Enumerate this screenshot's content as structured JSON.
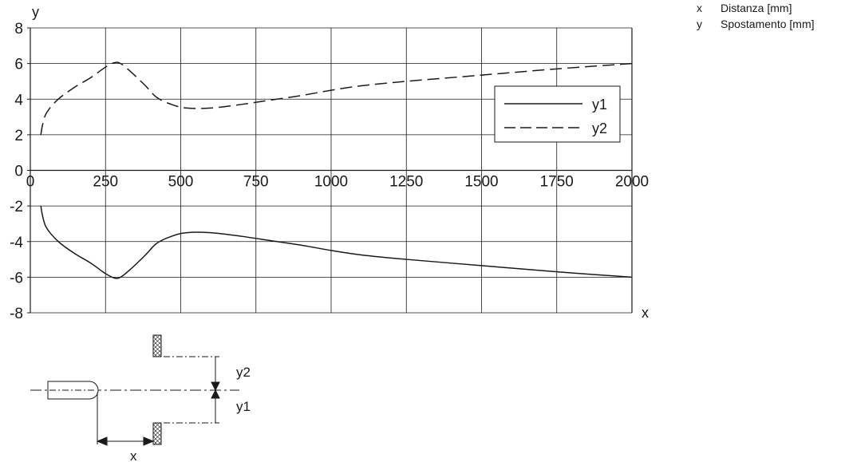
{
  "chart_data": {
    "type": "line",
    "x_axis_letter": "x",
    "y_axis_letter": "y",
    "xlim": [
      0,
      2000
    ],
    "ylim": [
      -8,
      8
    ],
    "x_ticks": [
      0,
      250,
      500,
      750,
      1000,
      1250,
      1500,
      1750,
      2000
    ],
    "y_ticks": [
      8,
      6,
      4,
      2,
      0,
      -2,
      -4,
      -6,
      -8
    ],
    "x_tick_labels": [
      "0",
      "250",
      "500",
      "750",
      "1000",
      "1250",
      "1500",
      "1750",
      "2000"
    ],
    "y_tick_labels": [
      "8",
      "6",
      "4",
      "2",
      "0",
      "-2",
      "-4",
      "-6",
      "-8"
    ],
    "grid": true,
    "legend_position": "right",
    "series": [
      {
        "name": "y1",
        "style": "solid",
        "points": [
          [
            35,
            -2
          ],
          [
            40,
            -2.5
          ],
          [
            50,
            -3.1
          ],
          [
            70,
            -3.6
          ],
          [
            100,
            -4.1
          ],
          [
            150,
            -4.7
          ],
          [
            200,
            -5.2
          ],
          [
            250,
            -5.8
          ],
          [
            280,
            -6.05
          ],
          [
            300,
            -6.0
          ],
          [
            330,
            -5.6
          ],
          [
            380,
            -4.8
          ],
          [
            420,
            -4.1
          ],
          [
            470,
            -3.7
          ],
          [
            520,
            -3.5
          ],
          [
            600,
            -3.5
          ],
          [
            700,
            -3.7
          ],
          [
            800,
            -3.95
          ],
          [
            900,
            -4.2
          ],
          [
            1000,
            -4.5
          ],
          [
            1100,
            -4.75
          ],
          [
            1250,
            -5.0
          ],
          [
            1500,
            -5.35
          ],
          [
            1750,
            -5.7
          ],
          [
            2000,
            -6.0
          ]
        ]
      },
      {
        "name": "y2",
        "style": "dashed",
        "points": [
          [
            35,
            2
          ],
          [
            40,
            2.5
          ],
          [
            50,
            3.1
          ],
          [
            70,
            3.6
          ],
          [
            100,
            4.1
          ],
          [
            150,
            4.7
          ],
          [
            200,
            5.2
          ],
          [
            250,
            5.8
          ],
          [
            280,
            6.05
          ],
          [
            300,
            6.0
          ],
          [
            330,
            5.6
          ],
          [
            380,
            4.8
          ],
          [
            420,
            4.1
          ],
          [
            470,
            3.7
          ],
          [
            520,
            3.5
          ],
          [
            600,
            3.5
          ],
          [
            700,
            3.7
          ],
          [
            800,
            3.95
          ],
          [
            900,
            4.2
          ],
          [
            1000,
            4.5
          ],
          [
            1100,
            4.75
          ],
          [
            1250,
            5.0
          ],
          [
            1500,
            5.35
          ],
          [
            1750,
            5.7
          ],
          [
            2000,
            6.0
          ]
        ]
      }
    ]
  },
  "axis_key": [
    {
      "letter": "x",
      "description": "Distanza [mm]"
    },
    {
      "letter": "y",
      "description": "Spostamento [mm]"
    }
  ],
  "sketch": {
    "label_y2": "y2",
    "label_y1": "y1",
    "label_x": "x"
  }
}
